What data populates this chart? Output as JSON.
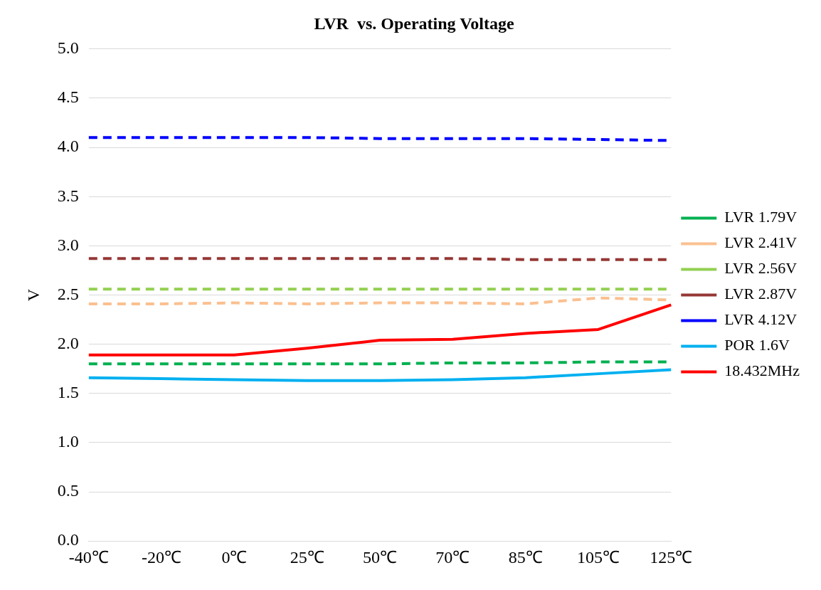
{
  "chart_data": {
    "type": "line",
    "title": "LVR  vs. Operating Voltage",
    "ylabel": "V",
    "categories": [
      "-40℃",
      "-20℃",
      "0℃",
      "25℃",
      "50℃",
      "70℃",
      "85℃",
      "105℃",
      "125℃"
    ],
    "series": [
      {
        "name": "LVR 1.79V",
        "color": "#00b050",
        "line_style": "dashed",
        "values": [
          1.8,
          1.8,
          1.8,
          1.8,
          1.8,
          1.81,
          1.81,
          1.82,
          1.82
        ]
      },
      {
        "name": "LVR 2.41V",
        "color": "#fac090",
        "line_style": "dashed",
        "values": [
          2.41,
          2.41,
          2.42,
          2.41,
          2.42,
          2.42,
          2.41,
          2.47,
          2.45
        ]
      },
      {
        "name": "LVR 2.56V",
        "color": "#92d050",
        "line_style": "dashed",
        "values": [
          2.56,
          2.56,
          2.56,
          2.56,
          2.56,
          2.56,
          2.56,
          2.56,
          2.56
        ]
      },
      {
        "name": "LVR 2.87V",
        "color": "#953735",
        "line_style": "dashed",
        "values": [
          2.87,
          2.87,
          2.87,
          2.87,
          2.87,
          2.87,
          2.86,
          2.86,
          2.86
        ]
      },
      {
        "name": "LVR 4.12V",
        "color": "#0000ff",
        "line_style": "dashed",
        "values": [
          4.1,
          4.1,
          4.1,
          4.1,
          4.09,
          4.09,
          4.09,
          4.08,
          4.07
        ]
      },
      {
        "name": "POR 1.6V",
        "color": "#00b0f0",
        "line_style": "solid",
        "values": [
          1.66,
          1.65,
          1.64,
          1.63,
          1.63,
          1.64,
          1.66,
          1.7,
          1.74
        ]
      },
      {
        "name": "18.432MHz",
        "color": "#ff0000",
        "line_style": "solid",
        "values": [
          1.89,
          1.89,
          1.89,
          1.96,
          2.04,
          2.05,
          2.11,
          2.15,
          2.4
        ]
      }
    ],
    "ylim": [
      0,
      5
    ],
    "yticks": [
      {
        "value": 0,
        "label": "0.0"
      },
      {
        "value": 0.5,
        "label": "0.5"
      },
      {
        "value": 1,
        "label": "1.0"
      },
      {
        "value": 1.5,
        "label": "1.5"
      },
      {
        "value": 2,
        "label": "2.0"
      },
      {
        "value": 2.5,
        "label": "2.5"
      },
      {
        "value": 3,
        "label": "3.0"
      },
      {
        "value": 3.5,
        "label": "3.5"
      },
      {
        "value": 4,
        "label": "4.0"
      },
      {
        "value": 4.5,
        "label": "4.5"
      },
      {
        "value": 5,
        "label": "5.0"
      }
    ],
    "grid": "y",
    "legend": "right",
    "marker": "none"
  }
}
